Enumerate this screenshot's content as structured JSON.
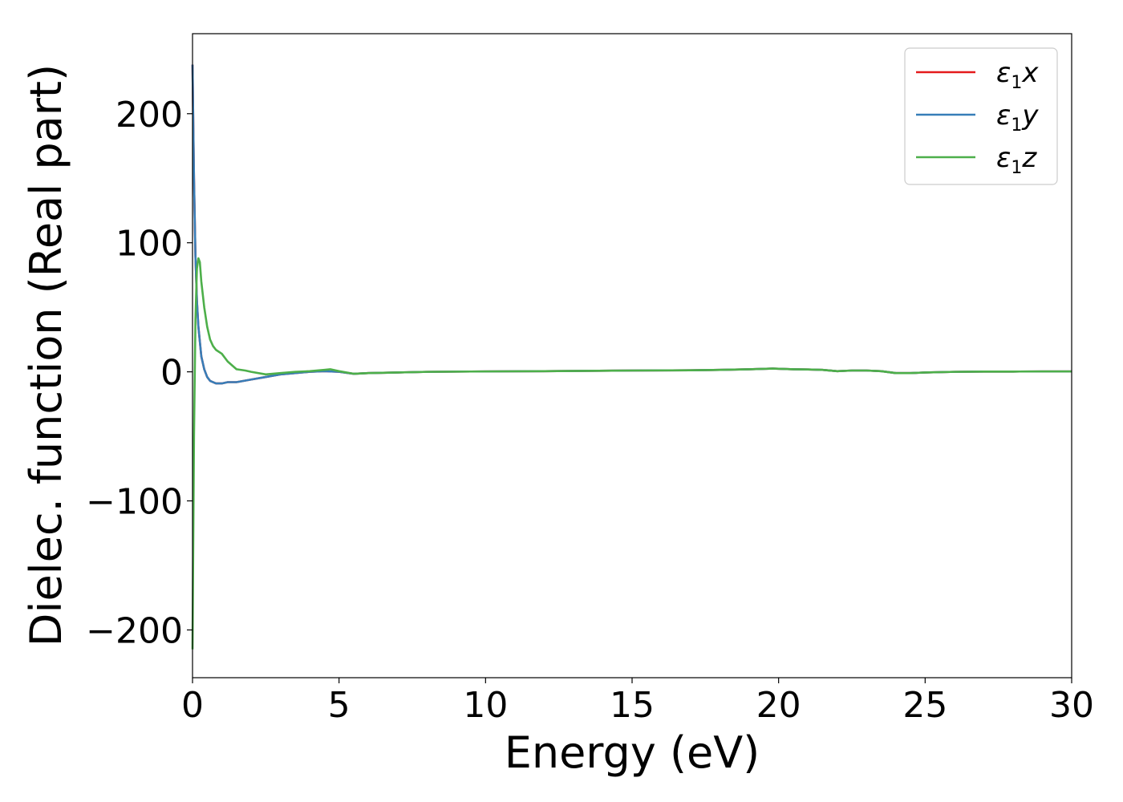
{
  "chart_data": {
    "type": "line",
    "xlabel": "Energy (eV)",
    "ylabel": "Dielec. function (Real part)",
    "xlim": [
      0,
      30
    ],
    "ylim": [
      -237,
      262
    ],
    "xticks": [
      0,
      5,
      10,
      15,
      20,
      25,
      30
    ],
    "yticks": [
      -200,
      -100,
      0,
      100,
      200
    ],
    "ytick_labels": [
      "−200",
      "−100",
      "0",
      "100",
      "200"
    ],
    "grid": false,
    "legend_position": "top-right",
    "series": [
      {
        "name": "ε₁x",
        "legend_main": "ε",
        "legend_sub": "1",
        "legend_tail": "x",
        "color": "#e41a1c",
        "x": [
          0,
          0.05,
          0.1,
          0.15,
          0.2,
          0.3,
          0.4,
          0.5,
          0.6,
          0.8,
          1.0,
          1.2,
          1.5,
          2.0,
          2.5,
          3.0,
          3.5,
          4.0,
          4.5,
          5.0,
          5.5,
          6.0,
          7,
          8,
          10,
          12,
          15,
          17,
          18,
          19,
          19.8,
          20.5,
          21,
          21.5,
          22,
          22.5,
          23,
          23.5,
          24,
          24.5,
          25,
          26,
          27,
          28,
          29,
          30
        ],
        "y": [
          238,
          150,
          90,
          55,
          35,
          12,
          2,
          -4,
          -7,
          -9,
          -9,
          -8,
          -8,
          -6,
          -4,
          -2,
          -1,
          0,
          0.5,
          0,
          -1.5,
          -1,
          -0.5,
          0,
          0.3,
          0.5,
          1,
          1.2,
          1.5,
          2,
          2.5,
          2,
          1.8,
          1.5,
          0.5,
          1,
          1,
          0.5,
          -1,
          -1,
          -0.5,
          0,
          0.2,
          0.2,
          0.3,
          0.3
        ]
      },
      {
        "name": "ε₁y",
        "legend_main": "ε",
        "legend_sub": "1",
        "legend_tail": "y",
        "color": "#377eb8",
        "x": [
          0,
          0.05,
          0.1,
          0.15,
          0.2,
          0.3,
          0.4,
          0.5,
          0.6,
          0.8,
          1.0,
          1.2,
          1.5,
          2.0,
          2.5,
          3.0,
          3.5,
          4.0,
          4.5,
          5.0,
          5.5,
          6.0,
          7,
          8,
          10,
          12,
          15,
          17,
          18,
          19,
          19.8,
          20.5,
          21,
          21.5,
          22,
          22.5,
          23,
          23.5,
          24,
          24.5,
          25,
          26,
          27,
          28,
          29,
          30
        ],
        "y": [
          238,
          150,
          90,
          55,
          35,
          12,
          2,
          -4,
          -7,
          -9,
          -9,
          -8,
          -8,
          -6,
          -4,
          -2,
          -1,
          0,
          0.5,
          0,
          -1.5,
          -1,
          -0.5,
          0,
          0.3,
          0.5,
          1,
          1.2,
          1.5,
          2,
          2.5,
          2,
          1.8,
          1.5,
          0.5,
          1,
          1,
          0.5,
          -1,
          -1,
          -0.5,
          0,
          0.2,
          0.2,
          0.3,
          0.3
        ]
      },
      {
        "name": "ε₁z",
        "legend_main": "ε",
        "legend_sub": "1",
        "legend_tail": "z",
        "color": "#4daf4a",
        "x": [
          0,
          0.05,
          0.1,
          0.15,
          0.2,
          0.25,
          0.3,
          0.4,
          0.5,
          0.6,
          0.7,
          0.8,
          1.0,
          1.2,
          1.5,
          1.8,
          2.0,
          2.5,
          3.0,
          3.5,
          4.0,
          4.5,
          4.7,
          5.0,
          5.5,
          6.0,
          7,
          8,
          10,
          12,
          15,
          17,
          18,
          19,
          19.8,
          20.5,
          21,
          21.5,
          22,
          22.5,
          23,
          23.5,
          24,
          24.5,
          25,
          26,
          27,
          28,
          29,
          30
        ],
        "y": [
          -215,
          -50,
          40,
          80,
          88,
          85,
          70,
          50,
          35,
          25,
          20,
          17,
          14,
          8,
          2,
          1,
          0,
          -2,
          -1,
          0,
          0.5,
          1.5,
          2,
          0.5,
          -1.5,
          -1,
          -0.5,
          0,
          0.3,
          0.5,
          1,
          1.2,
          1.5,
          2,
          2.5,
          2,
          1.8,
          1.5,
          0.5,
          1,
          1,
          0.5,
          -1,
          -1,
          -0.5,
          0,
          0.2,
          0.2,
          0.3,
          0.3
        ]
      }
    ]
  }
}
